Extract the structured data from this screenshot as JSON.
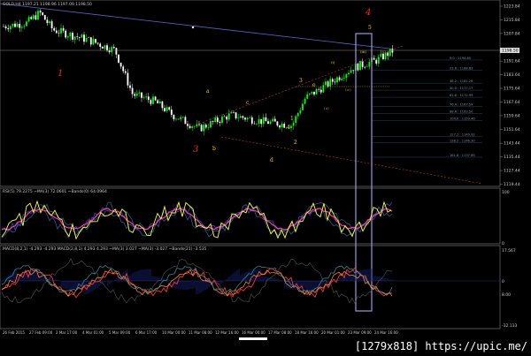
{
  "header": {
    "symbol": "GOLD,H4",
    "ohlc": "1197.21 1198.96 1197.09 1198.50"
  },
  "price_axis": [
    "1223.84",
    "1215.84",
    "1207.84",
    "1191.64",
    "1183.64",
    "1175.64",
    "1167.64",
    "1159.64",
    "1151.64",
    "1143.44",
    "1135.44",
    "1127.44",
    "1119.44"
  ],
  "current_price": "1198.50",
  "fib_levels": [
    "0.0 : 1194.85",
    "23.6 : 1188.83",
    "38.2 : 1181.28",
    "50.0 : 1177.17",
    "61.8 : 1172.99",
    "76.4 : 1167.59",
    "88.6 : 1163.50",
    "100.0 : 1159.46",
    "127.2 : 1149.92",
    "138.2 : 1146.30",
    "161.8 : 1137.85"
  ],
  "wave_labels": {
    "w1": "1",
    "w3": "3",
    "w4": "4",
    "w4_small": "4",
    "w5": "5",
    "w1_small": "1",
    "w2_small": "2",
    "w3_small": "3",
    "a": "a",
    "b": "b",
    "c": "c",
    "d": "d",
    "e": "e",
    "i": "(i)",
    "ii": "(ii)",
    "iii": "(iii)",
    "iv": "(iv)"
  },
  "rsi": {
    "label": "RSI(5) 79.2275   ~MA(3) 72.0601   ~Bands(0) 64.0964",
    "axis_top": "100",
    "axis_bottom": "0"
  },
  "macd": {
    "label": "MACD(8,2,1) -4.293 -4.293   MACD(2,8,1) 4.293 4.293   ~MA(3) 3.027   ~MA(3) -3.027   ~Bands(21) -3.535",
    "axis": [
      "17.567",
      "0",
      "8.00",
      "-32.133"
    ]
  },
  "time_axis": [
    "26 Feb 2015",
    "27 Feb 09:00",
    "2 Mar 17:00",
    "4 Mar 01:00",
    "5 Mar 09:00",
    "6 Mar 17:00",
    "10 Mar 00:00",
    "11 Mar 08:00",
    "12 Mar 16:00",
    "16 Mar 00:00",
    "17 Mar 08:00",
    "18 Mar 16:00",
    "20 Mar 01:00",
    "23 Mar 09:00",
    "24 Mar 16:00"
  ],
  "watermark": "[1279x818] https://upic.me/",
  "colors": {
    "bull": "#00ff00",
    "bear": "#ffffff",
    "rsi": "#ffff33",
    "ma": "#ff33cc",
    "bands": "#3366aa",
    "wave_major": "#ff2222",
    "wave_minor": "#ffcc00",
    "highlight_box": "#9999dd"
  }
}
